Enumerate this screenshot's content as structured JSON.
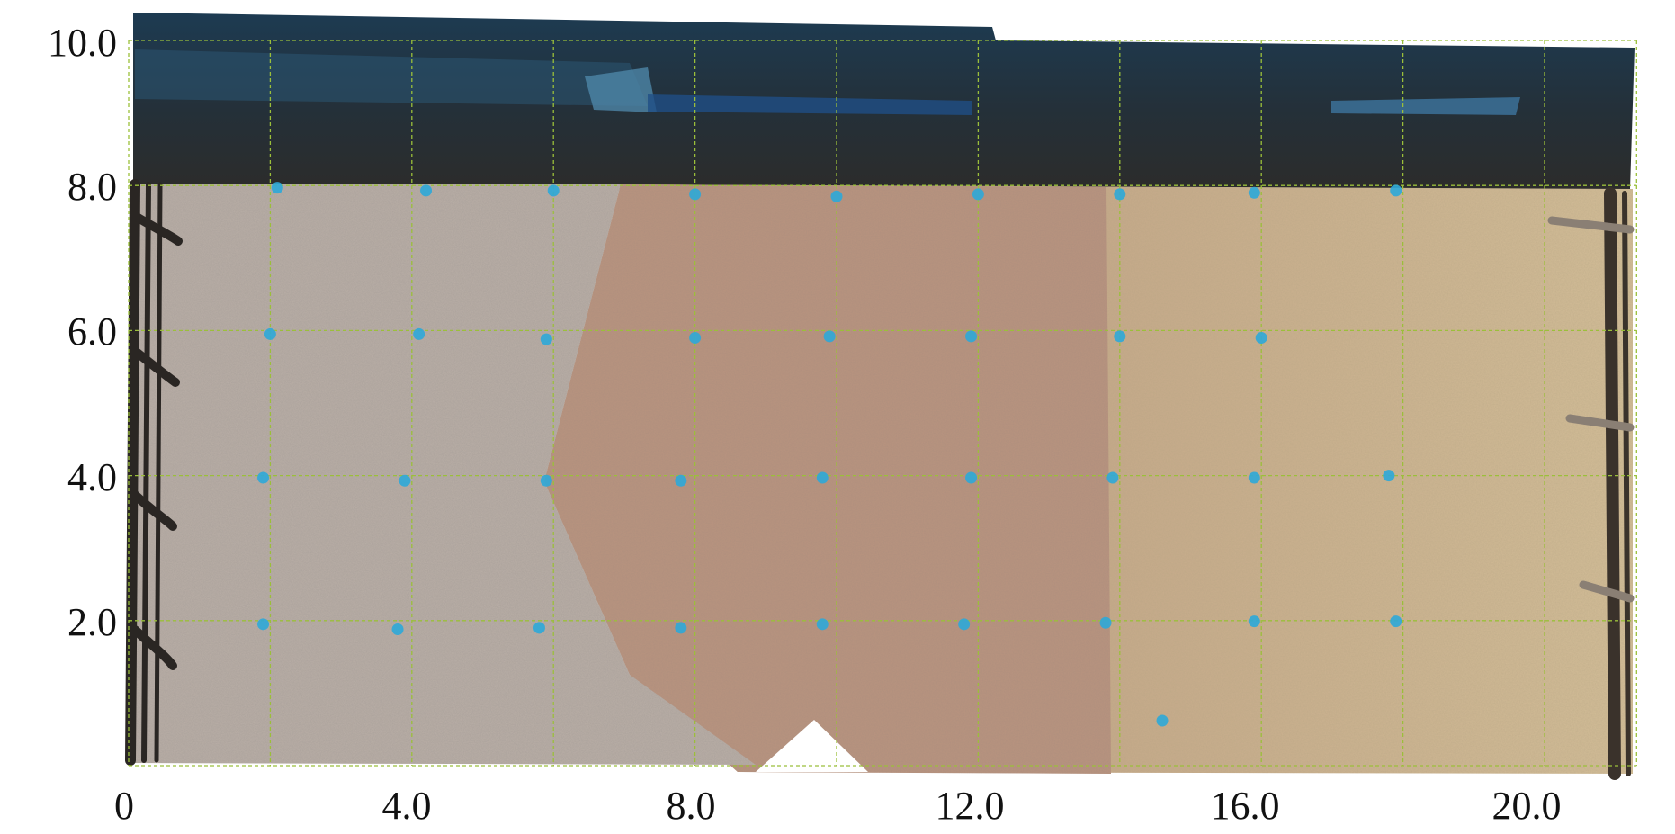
{
  "figure": {
    "x_ticks": [
      "0",
      "4.0",
      "8.0",
      "12.0",
      "16.0",
      "20.0"
    ],
    "y_ticks": [
      "2.0",
      "4.0",
      "6.0",
      "8.0",
      "10.0"
    ],
    "grid_lines_x": [
      0,
      2,
      4,
      6,
      8,
      10,
      12,
      14,
      16,
      18,
      20,
      21.3
    ],
    "grid_lines_y": [
      0,
      2,
      4,
      6,
      8,
      10
    ],
    "x_range": [
      0,
      21.3
    ],
    "y_range": [
      0,
      10
    ],
    "grid": "dashed",
    "colors": {
      "grid": "#9bbf3a",
      "marker": "#2ea8d8",
      "sky": "#1c2a33",
      "wall_dark": "#2b2c2b",
      "left_zone": "#b8aca3",
      "middle_zone": "#b7927f",
      "right_zone": "#c7b28f",
      "fence": "#2a2623"
    },
    "markers": [
      {
        "x": 2.1,
        "y": 7.97
      },
      {
        "x": 4.2,
        "y": 7.93
      },
      {
        "x": 6.0,
        "y": 7.93
      },
      {
        "x": 8.0,
        "y": 7.88
      },
      {
        "x": 10.0,
        "y": 7.85
      },
      {
        "x": 12.0,
        "y": 7.88
      },
      {
        "x": 14.0,
        "y": 7.88
      },
      {
        "x": 15.9,
        "y": 7.9
      },
      {
        "x": 17.9,
        "y": 7.93
      },
      {
        "x": 2.0,
        "y": 5.95
      },
      {
        "x": 4.1,
        "y": 5.95
      },
      {
        "x": 5.9,
        "y": 5.88
      },
      {
        "x": 8.0,
        "y": 5.9
      },
      {
        "x": 9.9,
        "y": 5.92
      },
      {
        "x": 11.9,
        "y": 5.92
      },
      {
        "x": 14.0,
        "y": 5.92
      },
      {
        "x": 16.0,
        "y": 5.9
      },
      {
        "x": 1.9,
        "y": 3.97
      },
      {
        "x": 3.9,
        "y": 3.93
      },
      {
        "x": 5.9,
        "y": 3.93
      },
      {
        "x": 7.8,
        "y": 3.93
      },
      {
        "x": 9.8,
        "y": 3.97
      },
      {
        "x": 11.9,
        "y": 3.97
      },
      {
        "x": 13.9,
        "y": 3.97
      },
      {
        "x": 15.9,
        "y": 3.97
      },
      {
        "x": 17.8,
        "y": 4.0
      },
      {
        "x": 1.9,
        "y": 1.95
      },
      {
        "x": 3.8,
        "y": 1.88
      },
      {
        "x": 5.8,
        "y": 1.9
      },
      {
        "x": 7.8,
        "y": 1.9
      },
      {
        "x": 9.8,
        "y": 1.95
      },
      {
        "x": 11.8,
        "y": 1.95
      },
      {
        "x": 13.8,
        "y": 1.97
      },
      {
        "x": 15.9,
        "y": 1.99
      },
      {
        "x": 17.9,
        "y": 1.99
      },
      {
        "x": 14.6,
        "y": 0.62
      }
    ]
  }
}
